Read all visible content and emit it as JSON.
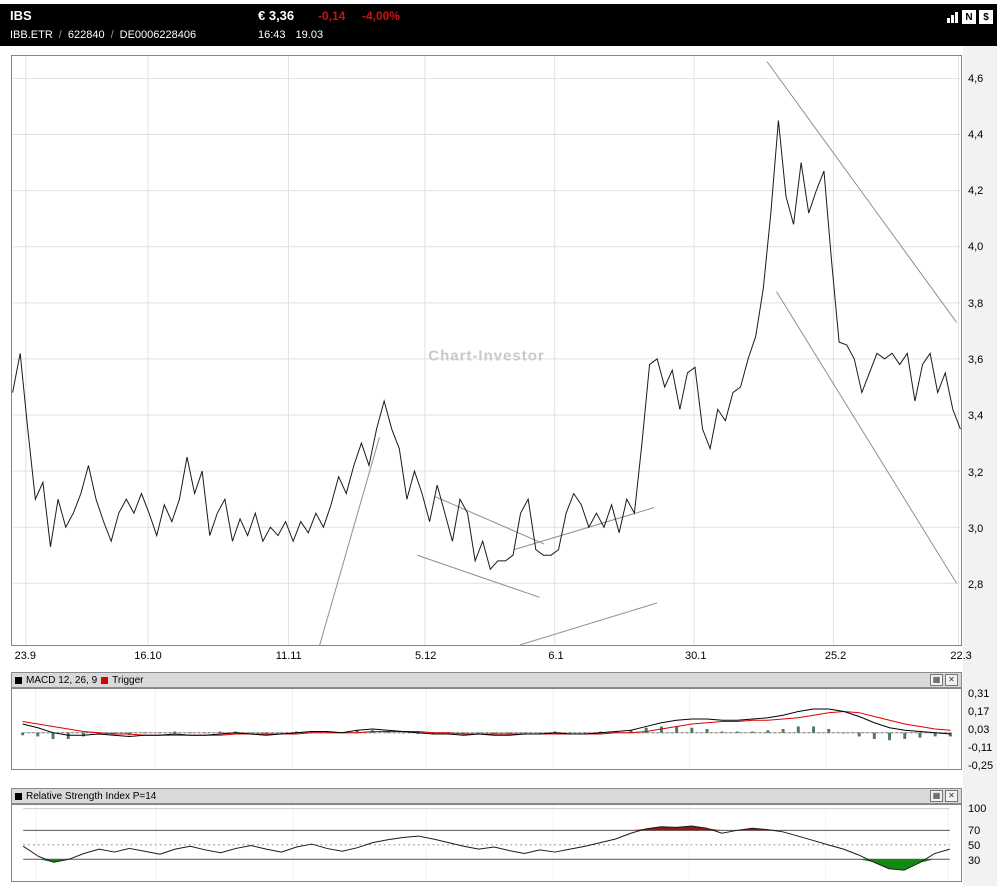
{
  "header": {
    "title": "IBS",
    "price": "€ 3,36",
    "change": "-0,14",
    "change_pct": "-4,00%",
    "symbol": "IBB.ETR",
    "separator": "/",
    "wkn": "622840",
    "isin": "DE0006228406",
    "time": "16:43",
    "date": "19.03",
    "icons": {
      "news_label": "N",
      "currency_label": "$"
    }
  },
  "panels": {
    "button_settings": "▦",
    "button_close": "✕",
    "macd": {
      "label": "MACD 12, 26, 9",
      "trigger_label": "Trigger"
    },
    "rsi": {
      "label": "Relative Strength Index P=14"
    }
  },
  "colors": {
    "negative": "#cc1111",
    "header_bg": "#000000",
    "panel_bar_bg": "#d9d9d9",
    "grid": "#e0e0e0",
    "trend": "#8f8f8f",
    "price_line": "#1a1a1a",
    "macd_line": "#000000",
    "trigger_line": "#dd0000",
    "histogram": "#4e7a5a",
    "rsi_line": "#1a1a1a",
    "rsi_overbought": "#8c1a1a",
    "rsi_oversold": "#128a12",
    "watermark": "#c9c9c9"
  },
  "chart_data": [
    {
      "id": "price",
      "type": "line",
      "title": "IBS price history",
      "watermark": "Chart-Investor",
      "ylim": [
        2.58,
        4.68
      ],
      "grid": true,
      "y_ticks": [
        {
          "label": "4,6",
          "v": 4.6
        },
        {
          "label": "4,4",
          "v": 4.4
        },
        {
          "label": "4,2",
          "v": 4.2
        },
        {
          "label": "4,0",
          "v": 4.0
        },
        {
          "label": "3,8",
          "v": 3.8
        },
        {
          "label": "3,6",
          "v": 3.6
        },
        {
          "label": "3,4",
          "v": 3.4
        },
        {
          "label": "3,2",
          "v": 3.2
        },
        {
          "label": "3,0",
          "v": 3.0
        },
        {
          "label": "2,8",
          "v": 2.8
        }
      ],
      "x_ticks": [
        {
          "label": "23.9",
          "pos": 0.014
        },
        {
          "label": "16.10",
          "pos": 0.143
        },
        {
          "label": "11.11",
          "pos": 0.291
        },
        {
          "label": "5.12",
          "pos": 0.435
        },
        {
          "label": "6.1",
          "pos": 0.572
        },
        {
          "label": "30.1",
          "pos": 0.719
        },
        {
          "label": "25.2",
          "pos": 0.866
        },
        {
          "label": "22.3",
          "pos": 0.998
        }
      ],
      "values": [
        3.48,
        3.62,
        3.35,
        3.1,
        3.16,
        2.93,
        3.1,
        3.0,
        3.05,
        3.12,
        3.22,
        3.1,
        3.02,
        2.95,
        3.05,
        3.1,
        3.05,
        3.12,
        3.05,
        2.97,
        3.08,
        3.02,
        3.1,
        3.25,
        3.12,
        3.2,
        2.97,
        3.05,
        3.1,
        2.95,
        3.03,
        2.97,
        3.05,
        2.95,
        3.0,
        2.97,
        3.02,
        2.95,
        3.02,
        2.98,
        3.05,
        3.0,
        3.08,
        3.18,
        3.12,
        3.22,
        3.3,
        3.22,
        3.35,
        3.45,
        3.35,
        3.28,
        3.1,
        3.2,
        3.12,
        3.02,
        3.15,
        3.05,
        2.95,
        3.1,
        3.05,
        2.88,
        2.95,
        2.85,
        2.88,
        2.88,
        2.9,
        3.05,
        3.1,
        2.92,
        2.9,
        2.9,
        2.92,
        3.05,
        3.12,
        3.08,
        3.0,
        3.05,
        3.0,
        3.08,
        2.98,
        3.1,
        3.05,
        3.3,
        3.58,
        3.6,
        3.5,
        3.56,
        3.42,
        3.55,
        3.57,
        3.35,
        3.28,
        3.42,
        3.38,
        3.48,
        3.5,
        3.6,
        3.68,
        3.85,
        4.12,
        4.45,
        4.18,
        4.08,
        4.3,
        4.12,
        4.2,
        4.27,
        3.95,
        3.66,
        3.65,
        3.6,
        3.48,
        3.55,
        3.62,
        3.6,
        3.62,
        3.58,
        3.62,
        3.45,
        3.58,
        3.62,
        3.48,
        3.55,
        3.42,
        3.35
      ],
      "trend_lines": [
        [
          0.324,
          2.58,
          0.387,
          3.32
        ],
        [
          0.427,
          2.9,
          0.556,
          2.75
        ],
        [
          0.445,
          3.11,
          0.561,
          2.94
        ],
        [
          0.529,
          2.92,
          0.677,
          3.07
        ],
        [
          0.535,
          2.58,
          0.68,
          2.73
        ],
        [
          0.796,
          4.66,
          0.996,
          3.73
        ],
        [
          0.806,
          3.84,
          0.996,
          2.8
        ]
      ]
    },
    {
      "id": "macd",
      "type": "line",
      "title": "MACD 12, 26, 9 with Trigger and histogram",
      "ylim": [
        -0.29,
        0.35
      ],
      "zero_line": 0,
      "y_ticks": [
        {
          "label": "0,31",
          "v": 0.31
        },
        {
          "label": "0,17",
          "v": 0.17
        },
        {
          "label": "0,03",
          "v": 0.03
        },
        {
          "label": "-0,11",
          "v": -0.11
        },
        {
          "label": "-0,25",
          "v": -0.25
        }
      ],
      "macd": [
        0.07,
        0.04,
        0.0,
        -0.02,
        -0.02,
        -0.01,
        -0.02,
        -0.03,
        -0.02,
        -0.02,
        -0.01,
        -0.02,
        -0.02,
        -0.01,
        0.0,
        -0.01,
        -0.02,
        -0.01,
        0.0,
        0.01,
        0.01,
        0.0,
        0.02,
        0.03,
        0.02,
        0.01,
        0.0,
        -0.01,
        -0.01,
        -0.02,
        -0.01,
        -0.02,
        -0.02,
        -0.01,
        -0.01,
        0.0,
        -0.01,
        -0.01,
        0.0,
        0.01,
        0.02,
        0.05,
        0.08,
        0.1,
        0.11,
        0.11,
        0.1,
        0.1,
        0.11,
        0.12,
        0.14,
        0.17,
        0.19,
        0.19,
        0.17,
        0.13,
        0.08,
        0.04,
        0.02,
        0.01,
        0.0,
        -0.01
      ],
      "trigger": [
        0.09,
        0.07,
        0.05,
        0.03,
        0.01,
        0.0,
        -0.01,
        -0.01,
        -0.02,
        -0.02,
        -0.02,
        -0.02,
        -0.02,
        -0.02,
        -0.01,
        -0.01,
        -0.01,
        -0.01,
        -0.01,
        0.0,
        0.0,
        0.0,
        0.0,
        0.01,
        0.01,
        0.01,
        0.01,
        0.0,
        0.0,
        -0.01,
        -0.01,
        -0.01,
        -0.01,
        -0.01,
        -0.01,
        -0.01,
        -0.01,
        -0.01,
        -0.01,
        0.0,
        0.0,
        0.01,
        0.03,
        0.05,
        0.07,
        0.08,
        0.09,
        0.09,
        0.1,
        0.1,
        0.11,
        0.12,
        0.14,
        0.16,
        0.17,
        0.16,
        0.13,
        0.1,
        0.07,
        0.05,
        0.03,
        0.02
      ]
    },
    {
      "id": "rsi",
      "type": "line",
      "title": "Relative Strength Index P=14",
      "ylim": [
        0,
        105
      ],
      "guide_levels": {
        "solid": [
          70,
          30
        ],
        "dashed": [
          50
        ],
        "light": [
          100
        ]
      },
      "y_ticks": [
        {
          "label": "100",
          "v": 100
        },
        {
          "label": "70",
          "v": 70
        },
        {
          "label": "50",
          "v": 50
        },
        {
          "label": "30",
          "v": 30
        }
      ],
      "values": [
        48,
        34,
        26,
        30,
        38,
        44,
        40,
        45,
        41,
        37,
        44,
        48,
        43,
        39,
        45,
        49,
        44,
        40,
        47,
        51,
        45,
        41,
        46,
        53,
        57,
        60,
        62,
        58,
        53,
        48,
        44,
        47,
        42,
        38,
        43,
        40,
        44,
        48,
        53,
        58,
        66,
        72,
        75,
        74,
        76,
        73,
        66,
        70,
        73,
        71,
        68,
        62,
        56,
        50,
        44,
        36,
        26,
        17,
        15,
        25,
        38,
        44
      ]
    }
  ]
}
